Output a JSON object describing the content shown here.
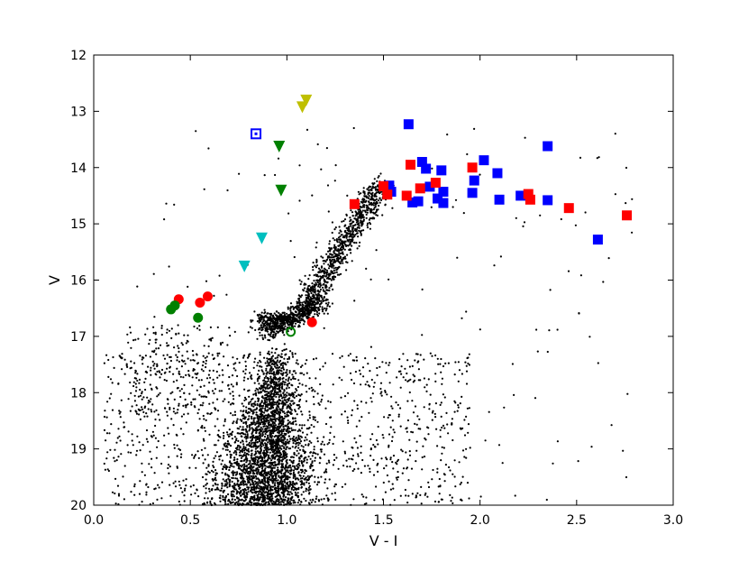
{
  "chart_data": {
    "type": "scatter",
    "title": "",
    "xlabel": "V - I",
    "ylabel": "V",
    "xlim": [
      0.0,
      3.0
    ],
    "ylim": [
      20,
      12
    ],
    "y_inverted": true,
    "grid": false,
    "x_ticks": [
      "0.0",
      "0.5",
      "1.0",
      "1.5",
      "2.0",
      "2.5",
      "3.0"
    ],
    "y_ticks": [
      "12",
      "13",
      "14",
      "15",
      "16",
      "17",
      "18",
      "19",
      "20"
    ],
    "colors": {
      "background_stars": "#000000",
      "blue": "#0000ff",
      "red": "#ff0000",
      "green": "#008000",
      "cyan": "#00bfbf",
      "yellow": "#bfbf00"
    },
    "series": [
      {
        "marker": "square",
        "color": "#0000ff",
        "points": [
          [
            1.63,
            13.23
          ],
          [
            2.35,
            13.62
          ],
          [
            1.7,
            13.9
          ],
          [
            2.02,
            13.87
          ],
          [
            1.72,
            14.02
          ],
          [
            1.8,
            14.05
          ],
          [
            2.09,
            14.1
          ],
          [
            1.97,
            14.23
          ],
          [
            1.53,
            14.32
          ],
          [
            1.74,
            14.34
          ],
          [
            1.81,
            14.43
          ],
          [
            1.54,
            14.43
          ],
          [
            1.96,
            14.45
          ],
          [
            2.21,
            14.5
          ],
          [
            1.78,
            14.55
          ],
          [
            2.1,
            14.57
          ],
          [
            1.65,
            14.62
          ],
          [
            1.68,
            14.6
          ],
          [
            2.35,
            14.58
          ],
          [
            1.81,
            14.63
          ],
          [
            2.61,
            15.28
          ]
        ]
      },
      {
        "marker": "square",
        "color": "#ff0000",
        "points": [
          [
            1.64,
            13.95
          ],
          [
            1.96,
            14.0
          ],
          [
            1.5,
            14.33
          ],
          [
            1.77,
            14.27
          ],
          [
            1.69,
            14.37
          ],
          [
            1.62,
            14.5
          ],
          [
            1.52,
            14.48
          ],
          [
            2.25,
            14.47
          ],
          [
            2.26,
            14.57
          ],
          [
            1.35,
            14.65
          ],
          [
            2.46,
            14.72
          ],
          [
            2.76,
            14.85
          ]
        ]
      },
      {
        "marker": "circle",
        "color": "#ff0000",
        "points": [
          [
            0.59,
            16.29
          ],
          [
            0.44,
            16.34
          ],
          [
            0.55,
            16.4
          ],
          [
            1.13,
            16.75
          ]
        ]
      },
      {
        "marker": "circle",
        "color": "#008000",
        "points": [
          [
            0.42,
            16.45
          ],
          [
            0.4,
            16.52
          ],
          [
            0.54,
            16.67
          ]
        ]
      },
      {
        "marker": "open-circle",
        "color": "#008000",
        "points": [
          [
            1.02,
            16.92
          ]
        ]
      },
      {
        "marker": "triangle-down",
        "color": "#008000",
        "points": [
          [
            0.96,
            13.62
          ],
          [
            0.97,
            14.4
          ]
        ]
      },
      {
        "marker": "triangle-down",
        "color": "#00bfbf",
        "points": [
          [
            0.87,
            15.25
          ],
          [
            0.78,
            15.75
          ]
        ]
      },
      {
        "marker": "triangle-down",
        "color": "#bfbf00",
        "points": [
          [
            1.1,
            12.8
          ],
          [
            1.08,
            12.92
          ]
        ]
      },
      {
        "marker": "open-square",
        "color": "#0000ff",
        "points": [
          [
            0.84,
            13.4
          ]
        ]
      }
    ]
  }
}
